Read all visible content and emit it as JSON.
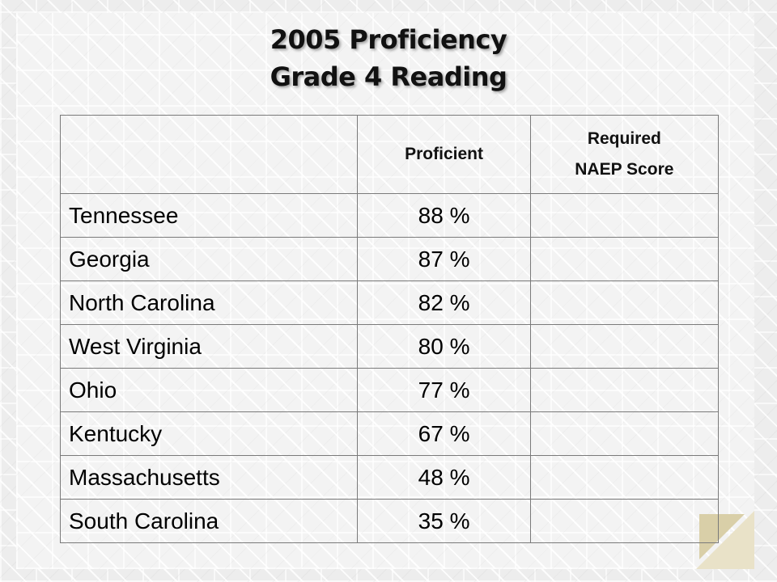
{
  "title": {
    "line1": "2005 Proficiency",
    "line2": "Grade 4 Reading"
  },
  "table": {
    "headers": {
      "state": "",
      "proficient": "Proficient",
      "required_line1": "Required",
      "required_line2": "NAEP Score"
    },
    "rows": [
      {
        "state": "Tennessee",
        "proficient": "88 %",
        "required": ""
      },
      {
        "state": "Georgia",
        "proficient": "87 %",
        "required": ""
      },
      {
        "state": "North Carolina",
        "proficient": "82 %",
        "required": ""
      },
      {
        "state": "West Virginia",
        "proficient": "80 %",
        "required": ""
      },
      {
        "state": "Ohio",
        "proficient": "77 %",
        "required": ""
      },
      {
        "state": "Kentucky",
        "proficient": "67 %",
        "required": ""
      },
      {
        "state": "Massachusetts",
        "proficient": "48 %",
        "required": ""
      },
      {
        "state": "South Carolina",
        "proficient": "35 %",
        "required": ""
      }
    ]
  }
}
